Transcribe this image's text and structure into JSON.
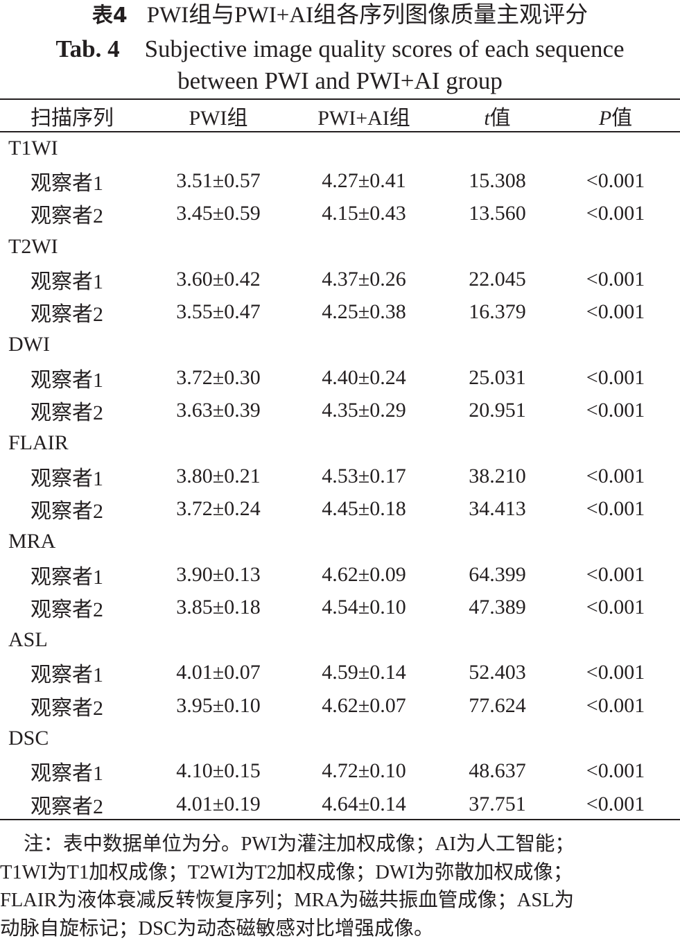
{
  "title_cn": {
    "label": "表4",
    "text": "PWI组与PWI+AI组各序列图像质量主观评分"
  },
  "title_en": {
    "label": "Tab. 4",
    "line1": "Subjective image quality scores of each sequence",
    "line2": "between PWI and PWI+AI group"
  },
  "table": {
    "headers": {
      "sequence": "扫描序列",
      "pwi": "PWI组",
      "pwi_ai": "PWI+AI组",
      "t_symbol": "t",
      "t_suffix": "值",
      "p_symbol": "P",
      "p_suffix": "值"
    },
    "groups": [
      {
        "name": "T1WI",
        "rows": [
          {
            "observer": "观察者1",
            "pwi": "3.51±0.57",
            "pwi_ai": "4.27±0.41",
            "t": "15.308",
            "p": "<0.001"
          },
          {
            "observer": "观察者2",
            "pwi": "3.45±0.59",
            "pwi_ai": "4.15±0.43",
            "t": "13.560",
            "p": "<0.001"
          }
        ]
      },
      {
        "name": "T2WI",
        "rows": [
          {
            "observer": "观察者1",
            "pwi": "3.60±0.42",
            "pwi_ai": "4.37±0.26",
            "t": "22.045",
            "p": "<0.001"
          },
          {
            "observer": "观察者2",
            "pwi": "3.55±0.47",
            "pwi_ai": "4.25±0.38",
            "t": "16.379",
            "p": "<0.001"
          }
        ]
      },
      {
        "name": "DWI",
        "rows": [
          {
            "observer": "观察者1",
            "pwi": "3.72±0.30",
            "pwi_ai": "4.40±0.24",
            "t": "25.031",
            "p": "<0.001"
          },
          {
            "observer": "观察者2",
            "pwi": "3.63±0.39",
            "pwi_ai": "4.35±0.29",
            "t": "20.951",
            "p": "<0.001"
          }
        ]
      },
      {
        "name": "FLAIR",
        "rows": [
          {
            "observer": "观察者1",
            "pwi": "3.80±0.21",
            "pwi_ai": "4.53±0.17",
            "t": "38.210",
            "p": "<0.001"
          },
          {
            "observer": "观察者2",
            "pwi": "3.72±0.24",
            "pwi_ai": "4.45±0.18",
            "t": "34.413",
            "p": "<0.001"
          }
        ]
      },
      {
        "name": "MRA",
        "rows": [
          {
            "observer": "观察者1",
            "pwi": "3.90±0.13",
            "pwi_ai": "4.62±0.09",
            "t": "64.399",
            "p": "<0.001"
          },
          {
            "observer": "观察者2",
            "pwi": "3.85±0.18",
            "pwi_ai": "4.54±0.10",
            "t": "47.389",
            "p": "<0.001"
          }
        ]
      },
      {
        "name": "ASL",
        "rows": [
          {
            "observer": "观察者1",
            "pwi": "4.01±0.07",
            "pwi_ai": "4.59±0.14",
            "t": "52.403",
            "p": "<0.001"
          },
          {
            "observer": "观察者2",
            "pwi": "3.95±0.10",
            "pwi_ai": "4.62±0.07",
            "t": "77.624",
            "p": "<0.001"
          }
        ]
      },
      {
        "name": "DSC",
        "rows": [
          {
            "observer": "观察者1",
            "pwi": "4.10±0.15",
            "pwi_ai": "4.72±0.10",
            "t": "48.637",
            "p": "<0.001"
          },
          {
            "observer": "观察者2",
            "pwi": "4.01±0.19",
            "pwi_ai": "4.64±0.14",
            "t": "37.751",
            "p": "<0.001"
          }
        ]
      }
    ]
  },
  "note": {
    "line1": "注：表中数据单位为分。PWI为灌注加权成像；AI为人工智能；",
    "line2": "T1WI为T1加权成像；T2WI为T2加权成像；DWI为弥散加权成像；",
    "line3": "FLAIR为液体衰减反转恢复序列；MRA为磁共振血管成像；ASL为",
    "line4": "动脉自旋标记；DSC为动态磁敏感对比增强成像。"
  }
}
